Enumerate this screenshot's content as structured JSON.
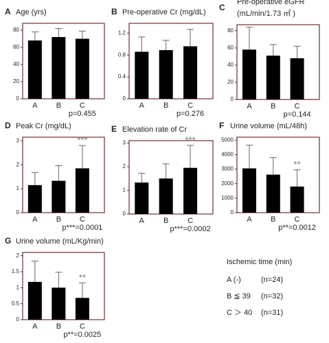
{
  "chart_data": [
    {
      "type": "bar",
      "panel_label": "A",
      "title": [
        "Age (yrs)"
      ],
      "categories": [
        "A",
        "B",
        "C"
      ],
      "values": [
        68,
        72,
        70
      ],
      "errors": [
        10,
        10,
        9
      ],
      "ylim": [
        0,
        88
      ],
      "yticks": [
        0,
        20,
        40,
        60,
        80
      ],
      "annotations": [
        null,
        null,
        null
      ],
      "p_value": "p=0.455",
      "color": "#000000"
    },
    {
      "type": "bar",
      "panel_label": "B",
      "title": [
        "Pre-operative Cr (mg/dL)"
      ],
      "categories": [
        "A",
        "B",
        "C"
      ],
      "values": [
        0.86,
        0.89,
        0.96
      ],
      "errors": [
        0.27,
        0.18,
        0.31
      ],
      "ylim": [
        0,
        1.38
      ],
      "yticks": [
        0,
        0.4,
        0.8,
        1.2
      ],
      "annotations": [
        null,
        null,
        null
      ],
      "p_value": "p=0.276",
      "color": "#000000"
    },
    {
      "type": "bar",
      "panel_label": "C",
      "title": [
        "Pre-operative eGFR",
        "(mL/min/1.73 ㎡ )"
      ],
      "categories": [
        "A",
        "B",
        "C"
      ],
      "values": [
        58,
        51,
        48
      ],
      "errors": [
        26,
        13,
        14
      ],
      "ylim": [
        0,
        87
      ],
      "yticks": [
        0,
        20,
        40,
        60,
        80
      ],
      "annotations": [
        null,
        null,
        null
      ],
      "p_value": "p=0.144",
      "color": "#000000"
    },
    {
      "type": "bar",
      "panel_label": "D",
      "title": [
        "Peak Cr (mg/dL)"
      ],
      "categories": [
        "A",
        "B",
        "C"
      ],
      "values": [
        1.15,
        1.33,
        1.85
      ],
      "errors": [
        0.53,
        0.63,
        0.95
      ],
      "ylim": [
        0,
        3.15
      ],
      "yticks": [
        0,
        1,
        2,
        3
      ],
      "annotations": [
        null,
        null,
        "***"
      ],
      "p_value": "p***=0.0001",
      "color": "#000000"
    },
    {
      "type": "bar",
      "panel_label": "E",
      "title": [
        "Elevation rate of Cr"
      ],
      "categories": [
        "A",
        "B",
        "C"
      ],
      "values": [
        1.33,
        1.5,
        1.95
      ],
      "errors": [
        0.39,
        0.62,
        0.95
      ],
      "ylim": [
        0,
        3.1
      ],
      "yticks": [
        0,
        1,
        2,
        3
      ],
      "annotations": [
        null,
        null,
        "***"
      ],
      "p_value": "p***=0.0002",
      "color": "#000000"
    },
    {
      "type": "bar",
      "panel_label": "F",
      "title": [
        "Urine volume (mL/48h)"
      ],
      "categories": [
        "A",
        "B",
        "C"
      ],
      "values": [
        3050,
        2620,
        1800
      ],
      "errors": [
        1600,
        1180,
        1150
      ],
      "ylim": [
        0,
        5200
      ],
      "yticks": [
        0,
        1000,
        2000,
        3000,
        4000,
        5000
      ],
      "annotations": [
        null,
        null,
        "**"
      ],
      "p_value": "p**=0.0012",
      "color": "#000000"
    },
    {
      "type": "bar",
      "panel_label": "G",
      "title": [
        "Urine volume (mL/Kg/min)"
      ],
      "categories": [
        "A",
        "B",
        "C"
      ],
      "values": [
        1.18,
        1.0,
        0.68
      ],
      "errors": [
        0.65,
        0.48,
        0.47
      ],
      "ylim": [
        0,
        2.1
      ],
      "yticks": [
        0,
        0.5,
        1,
        1.5,
        2
      ],
      "annotations": [
        null,
        null,
        "**"
      ],
      "p_value": "p**=0.0025",
      "color": "#000000"
    }
  ],
  "group_legend": {
    "title": "Ischemic time (min)",
    "rows": [
      [
        "A (-)",
        "(n=24)"
      ],
      [
        "B ≦ 39",
        "(n=32)"
      ],
      [
        "C ＞ 40",
        "(n=31)"
      ]
    ]
  }
}
